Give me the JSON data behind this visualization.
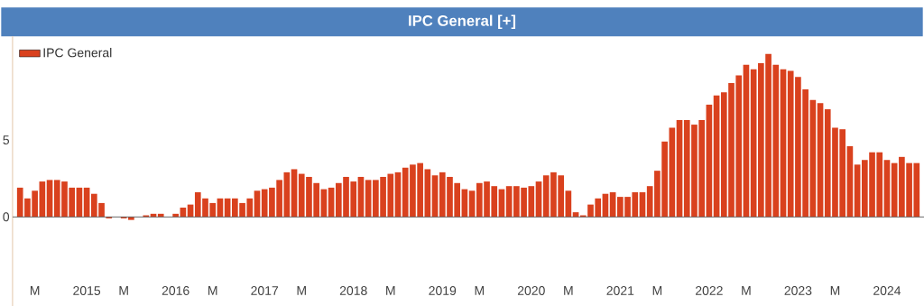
{
  "chart_data": {
    "type": "bar",
    "title": "IPC General [+]",
    "x": [
      "2014-04",
      "2014-05",
      "2014-06",
      "2014-07",
      "2014-08",
      "2014-09",
      "2014-10",
      "2014-11",
      "2014-12",
      "2015-01",
      "2015-02",
      "2015-03",
      "2015-04",
      "2015-05",
      "2015-06",
      "2015-07",
      "2015-08",
      "2015-09",
      "2015-10",
      "2015-11",
      "2015-12",
      "2016-01",
      "2016-02",
      "2016-03",
      "2016-04",
      "2016-05",
      "2016-06",
      "2016-07",
      "2016-08",
      "2016-09",
      "2016-10",
      "2016-11",
      "2016-12",
      "2017-01",
      "2017-02",
      "2017-03",
      "2017-04",
      "2017-05",
      "2017-06",
      "2017-07",
      "2017-08",
      "2017-09",
      "2017-10",
      "2017-11",
      "2017-12",
      "2018-01",
      "2018-02",
      "2018-03",
      "2018-04",
      "2018-05",
      "2018-06",
      "2018-07",
      "2018-08",
      "2018-09",
      "2018-10",
      "2018-11",
      "2018-12",
      "2019-01",
      "2019-02",
      "2019-03",
      "2019-04",
      "2019-05",
      "2019-06",
      "2019-07",
      "2019-08",
      "2019-09",
      "2019-10",
      "2019-11",
      "2019-12",
      "2020-01",
      "2020-02",
      "2020-03",
      "2020-04",
      "2020-05",
      "2020-06",
      "2020-07",
      "2020-08",
      "2020-09",
      "2020-10",
      "2020-11",
      "2020-12",
      "2021-01",
      "2021-02",
      "2021-03",
      "2021-04",
      "2021-05",
      "2021-06",
      "2021-07",
      "2021-08",
      "2021-09",
      "2021-10",
      "2021-11",
      "2021-12",
      "2022-01",
      "2022-02",
      "2022-03",
      "2022-04",
      "2022-05",
      "2022-06",
      "2022-07",
      "2022-08",
      "2022-09",
      "2022-10",
      "2022-11",
      "2022-12",
      "2023-01",
      "2023-02",
      "2023-03",
      "2023-04",
      "2023-05",
      "2023-06",
      "2023-07",
      "2023-08",
      "2023-09",
      "2023-10",
      "2023-11",
      "2023-12",
      "2024-01",
      "2024-02",
      "2024-03",
      "2024-04",
      "2024-05"
    ],
    "series": [
      {
        "name": "IPC General",
        "color": "#d9411e",
        "values": [
          1.9,
          1.2,
          1.7,
          2.3,
          2.4,
          2.4,
          2.3,
          1.9,
          1.9,
          1.9,
          1.5,
          0.9,
          -0.1,
          0,
          -0.1,
          -0.2,
          0,
          0.1,
          0.2,
          0.2,
          0,
          0.2,
          0.6,
          0.8,
          1.6,
          1.2,
          0.9,
          1.2,
          1.2,
          1.2,
          0.9,
          1.2,
          1.7,
          1.8,
          1.9,
          2.4,
          2.9,
          3.1,
          2.8,
          2.6,
          2.2,
          1.8,
          1.9,
          2.2,
          2.6,
          2.3,
          2.6,
          2.4,
          2.4,
          2.6,
          2.8,
          2.9,
          3.2,
          3.4,
          3.5,
          3.1,
          2.7,
          2.9,
          2.6,
          2.2,
          1.8,
          1.7,
          2.2,
          2.3,
          2.0,
          1.8,
          2.0,
          2.0,
          1.9,
          2.0,
          2.3,
          2.7,
          2.9,
          2.7,
          1.7,
          0.3,
          0.1,
          0.8,
          1.2,
          1.5,
          1.6,
          1.3,
          1.3,
          1.6,
          1.6,
          2.0,
          3.0,
          4.9,
          5.8,
          6.3,
          6.3,
          6.0,
          6.3,
          7.3,
          7.9,
          8.1,
          8.7,
          9.2,
          9.9,
          9.6,
          10.0,
          10.6,
          9.9,
          9.6,
          9.5,
          9.1,
          8.3,
          7.6,
          7.4,
          7.0,
          5.8,
          5.7,
          4.6,
          3.4,
          3.7,
          4.2,
          4.2,
          3.7,
          3.5,
          3.9,
          3.5,
          3.5
        ]
      }
    ],
    "xlim": [
      "2014-03",
      "2024-06"
    ],
    "ylim": [
      -5.8,
      11.76
    ],
    "xticks": [
      {
        "value": "2014-06",
        "label": "M"
      },
      {
        "value": "2015-01",
        "label": "2015"
      },
      {
        "value": "2015-06",
        "label": "M"
      },
      {
        "value": "2016-01",
        "label": "2016"
      },
      {
        "value": "2016-06",
        "label": "M"
      },
      {
        "value": "2017-01",
        "label": "2017"
      },
      {
        "value": "2017-06",
        "label": "M"
      },
      {
        "value": "2018-01",
        "label": "2018"
      },
      {
        "value": "2018-06",
        "label": "M"
      },
      {
        "value": "2019-01",
        "label": "2019"
      },
      {
        "value": "2019-06",
        "label": "M"
      },
      {
        "value": "2020-01",
        "label": "2020"
      },
      {
        "value": "2020-06",
        "label": "M"
      },
      {
        "value": "2021-01",
        "label": "2021"
      },
      {
        "value": "2021-06",
        "label": "M"
      },
      {
        "value": "2022-01",
        "label": "2022"
      },
      {
        "value": "2022-06",
        "label": "M"
      },
      {
        "value": "2023-01",
        "label": "2023"
      },
      {
        "value": "2023-06",
        "label": "M"
      },
      {
        "value": "2024-01",
        "label": "2024"
      }
    ],
    "yticks": [
      0,
      5
    ],
    "ref_lines": [
      {
        "axis": "y",
        "value": 0,
        "color": "#555555"
      }
    ],
    "legend": "top left"
  }
}
